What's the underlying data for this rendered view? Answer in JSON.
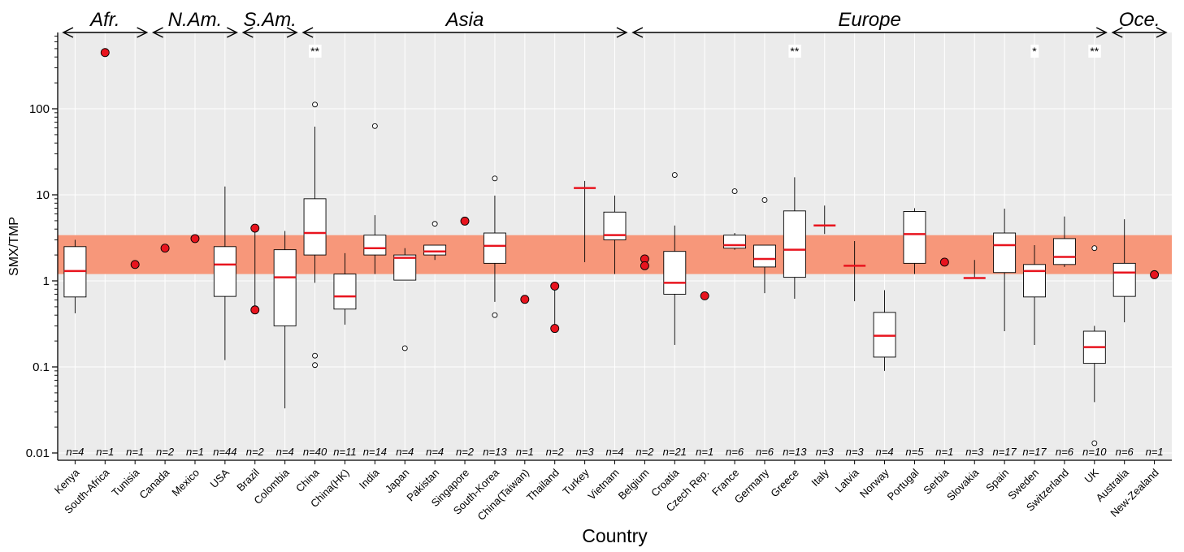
{
  "chart_data": {
    "type": "box",
    "xlabel": "Country",
    "ylabel": "SMX/TMP",
    "yscale": "log",
    "ylim": [
      0.01,
      1000
    ],
    "yticks": [
      0.01,
      0.1,
      1,
      10,
      100
    ],
    "yticklabels": [
      "0.01",
      "0.1",
      "1",
      "10",
      "100"
    ],
    "grid": true,
    "reference_band": {
      "low": 1.2,
      "high": 3.4,
      "color": "#f7977a"
    },
    "regions": [
      {
        "label": "Afr.",
        "from": "Kenya",
        "to": "Tunisia"
      },
      {
        "label": "N.Am.",
        "from": "Canada",
        "to": "USA"
      },
      {
        "label": "S.Am.",
        "from": "Brazil",
        "to": "Colombia"
      },
      {
        "label": "Asia",
        "from": "China",
        "to": "Vietnam"
      },
      {
        "label": "Europe",
        "from": "Belgium",
        "to": "UK"
      },
      {
        "label": "Oce.",
        "from": "Australia",
        "to": "New-Zealand"
      }
    ],
    "significance": [
      {
        "category": "China",
        "label": "**"
      },
      {
        "category": "Greece",
        "label": "**"
      },
      {
        "category": "Sweden",
        "label": "*"
      },
      {
        "category": "UK",
        "label": "**"
      }
    ],
    "categories": [
      {
        "name": "Kenya",
        "n": "n=4",
        "kind": "box",
        "median": 1.3,
        "q1": 0.65,
        "q3": 2.5,
        "wlo": 0.42,
        "whi": 3.0,
        "outliers": []
      },
      {
        "name": "South-Africa",
        "n": "n=1",
        "kind": "points",
        "points": [
          450
        ]
      },
      {
        "name": "Tunisia",
        "n": "n=1",
        "kind": "points",
        "points": [
          1.55
        ]
      },
      {
        "name": "Canada",
        "n": "n=2",
        "kind": "points",
        "points": [
          2.4
        ]
      },
      {
        "name": "Mexico",
        "n": "n=1",
        "kind": "points",
        "points": [
          3.1
        ]
      },
      {
        "name": "USA",
        "n": "n=44",
        "kind": "box",
        "median": 1.55,
        "q1": 0.66,
        "q3": 2.5,
        "wlo": 0.12,
        "whi": 12.5,
        "outliers": []
      },
      {
        "name": "Brazil",
        "n": "n=2",
        "kind": "points",
        "points": [
          4.1,
          0.46
        ],
        "connect": true
      },
      {
        "name": "Colombia",
        "n": "n=4",
        "kind": "box",
        "median": 1.1,
        "q1": 0.3,
        "q3": 2.3,
        "wlo": 0.033,
        "whi": 3.8,
        "outliers": []
      },
      {
        "name": "China",
        "n": "n=40",
        "kind": "box",
        "median": 3.6,
        "q1": 2.0,
        "q3": 9.0,
        "wlo": 0.95,
        "whi": 62,
        "outliers": [
          112,
          0.135,
          0.105
        ]
      },
      {
        "name": "China(HK)",
        "n": "n=11",
        "kind": "box",
        "median": 0.66,
        "q1": 0.47,
        "q3": 1.2,
        "wlo": 0.31,
        "whi": 2.1,
        "outliers": []
      },
      {
        "name": "India",
        "n": "n=14",
        "kind": "box",
        "median": 2.4,
        "q1": 2.0,
        "q3": 3.4,
        "wlo": 1.2,
        "whi": 5.8,
        "outliers": [
          63
        ]
      },
      {
        "name": "Japan",
        "n": "n=4",
        "kind": "box",
        "median": 1.85,
        "q1": 1.02,
        "q3": 2.0,
        "wlo": 1.02,
        "whi": 2.4,
        "outliers": [
          0.165
        ]
      },
      {
        "name": "Pakistan",
        "n": "n=4",
        "kind": "box",
        "median": 2.2,
        "q1": 2.0,
        "q3": 2.6,
        "wlo": 1.75,
        "whi": 2.6,
        "outliers": [
          4.6
        ]
      },
      {
        "name": "Singapore",
        "n": "n=2",
        "kind": "points",
        "points": [
          4.95
        ]
      },
      {
        "name": "South-Korea",
        "n": "n=13",
        "kind": "box",
        "median": 2.55,
        "q1": 1.6,
        "q3": 3.6,
        "wlo": 0.57,
        "whi": 9.8,
        "outliers": [
          15.5,
          0.4
        ]
      },
      {
        "name": "China(Taiwan)",
        "n": "n=1",
        "kind": "points",
        "points": [
          0.61
        ]
      },
      {
        "name": "Thailand",
        "n": "n=2",
        "kind": "points",
        "points": [
          0.87,
          0.28
        ],
        "connect": true
      },
      {
        "name": "Turkey",
        "n": "n=3",
        "kind": "box",
        "median": 12.0,
        "q1": 12.0,
        "q3": 12.0,
        "wlo": 1.65,
        "whi": 14.5,
        "outliers": []
      },
      {
        "name": "Vietnam",
        "n": "n=4",
        "kind": "box",
        "median": 3.4,
        "q1": 3.0,
        "q3": 6.3,
        "wlo": 1.2,
        "whi": 9.8,
        "outliers": []
      },
      {
        "name": "Belgium",
        "n": "n=2",
        "kind": "points",
        "points": [
          1.8,
          1.5
        ]
      },
      {
        "name": "Croatia",
        "n": "n=21",
        "kind": "box",
        "median": 0.95,
        "q1": 0.7,
        "q3": 2.2,
        "wlo": 0.18,
        "whi": 4.4,
        "outliers": [
          17
        ]
      },
      {
        "name": "Czech Rep.",
        "n": "n=1",
        "kind": "points",
        "points": [
          0.67
        ]
      },
      {
        "name": "France",
        "n": "n=6",
        "kind": "box",
        "median": 2.6,
        "q1": 2.4,
        "q3": 3.4,
        "wlo": 2.3,
        "whi": 3.6,
        "outliers": [
          11
        ]
      },
      {
        "name": "Germany",
        "n": "n=6",
        "kind": "box",
        "median": 1.8,
        "q1": 1.45,
        "q3": 2.6,
        "wlo": 0.72,
        "whi": 2.6,
        "outliers": [
          8.7
        ]
      },
      {
        "name": "Greece",
        "n": "n=13",
        "kind": "box",
        "median": 2.3,
        "q1": 1.1,
        "q3": 6.5,
        "wlo": 0.62,
        "whi": 16,
        "outliers": []
      },
      {
        "name": "Italy",
        "n": "n=3",
        "kind": "box",
        "median": 4.4,
        "q1": 4.4,
        "q3": 4.4,
        "wlo": 3.5,
        "whi": 7.5,
        "outliers": []
      },
      {
        "name": "Latvia",
        "n": "n=3",
        "kind": "box",
        "median": 1.5,
        "q1": 1.5,
        "q3": 1.5,
        "wlo": 0.58,
        "whi": 2.9,
        "outliers": []
      },
      {
        "name": "Norway",
        "n": "n=4",
        "kind": "box",
        "median": 0.23,
        "q1": 0.13,
        "q3": 0.43,
        "wlo": 0.09,
        "whi": 0.78,
        "outliers": []
      },
      {
        "name": "Portugal",
        "n": "n=5",
        "kind": "box",
        "median": 3.5,
        "q1": 1.6,
        "q3": 6.4,
        "wlo": 1.2,
        "whi": 7.0,
        "outliers": []
      },
      {
        "name": "Serbia",
        "n": "n=1",
        "kind": "points",
        "points": [
          1.65
        ]
      },
      {
        "name": "Slovakia",
        "n": "n=3",
        "kind": "box",
        "median": 1.08,
        "q1": 1.08,
        "q3": 1.08,
        "wlo": 1.08,
        "whi": 1.75,
        "outliers": []
      },
      {
        "name": "Spain",
        "n": "n=17",
        "kind": "box",
        "median": 2.6,
        "q1": 1.25,
        "q3": 3.6,
        "wlo": 0.26,
        "whi": 6.9,
        "outliers": []
      },
      {
        "name": "Sweden",
        "n": "n=17",
        "kind": "box",
        "median": 1.3,
        "q1": 0.65,
        "q3": 1.55,
        "wlo": 0.18,
        "whi": 2.6,
        "outliers": []
      },
      {
        "name": "Switzerland",
        "n": "n=6",
        "kind": "box",
        "median": 1.9,
        "q1": 1.55,
        "q3": 3.1,
        "wlo": 1.45,
        "whi": 5.6,
        "outliers": []
      },
      {
        "name": "UK",
        "n": "n=10",
        "kind": "box",
        "median": 0.17,
        "q1": 0.11,
        "q3": 0.26,
        "wlo": 0.039,
        "whi": 0.3,
        "outliers": [
          2.4,
          0.013
        ]
      },
      {
        "name": "Australia",
        "n": "n=6",
        "kind": "box",
        "median": 1.25,
        "q1": 0.66,
        "q3": 1.6,
        "wlo": 0.33,
        "whi": 5.2,
        "outliers": []
      },
      {
        "name": "New-Zealand",
        "n": "n=1",
        "kind": "points",
        "points": [
          1.18
        ]
      }
    ]
  },
  "colors": {
    "panel_bg": "#ebebeb",
    "grid": "#ffffff",
    "band": "#f7977a",
    "median": "#e8141e",
    "point_fill": "#e8141e",
    "box_fill": "#ffffff",
    "stroke": "#000000"
  }
}
